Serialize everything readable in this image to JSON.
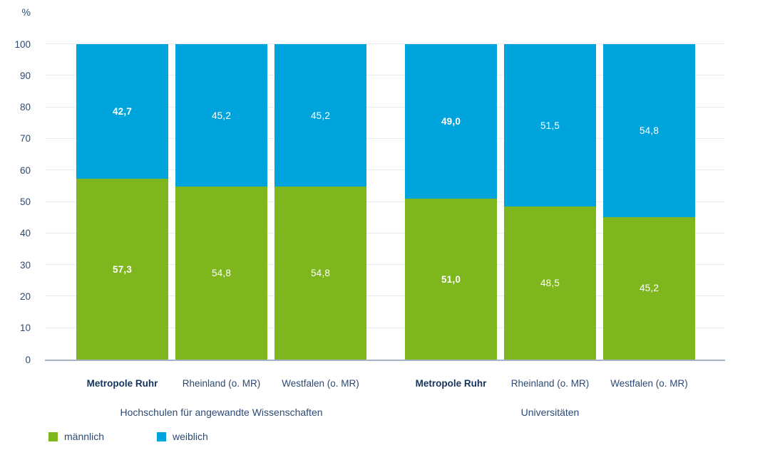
{
  "chart_data": {
    "type": "bar",
    "subtype": "stacked-percentage",
    "unit_axis_label": "%",
    "ylim": [
      0,
      100
    ],
    "y_ticks": [
      0,
      10,
      20,
      30,
      40,
      50,
      60,
      70,
      80,
      90,
      100
    ],
    "grid": "horizontal",
    "legend_position": "bottom-left",
    "series_names": [
      "männlich",
      "weiblich"
    ],
    "colors": {
      "maennlich": "#7eb61e",
      "weiblich": "#00a4dc",
      "value_label_text": "#ffffff",
      "axis_text": "#2c4a72",
      "emphasis_text": "#14335d",
      "gridline": "#e8ecf2",
      "baseline": "#a7b3c6"
    },
    "groups": [
      {
        "label": "Hochschulen für angewandte Wissenschaften",
        "bars": [
          {
            "category": "Metropole Ruhr",
            "bold": true,
            "values": {
              "maennlich": 57.3,
              "weiblich": 42.7
            },
            "display": {
              "maennlich": "57,3",
              "weiblich": "42,7"
            }
          },
          {
            "category": "Rheinland (o. MR)",
            "bold": false,
            "values": {
              "maennlich": 54.8,
              "weiblich": 45.2
            },
            "display": {
              "maennlich": "54,8",
              "weiblich": "45,2"
            }
          },
          {
            "category": "Westfalen (o. MR)",
            "bold": false,
            "values": {
              "maennlich": 54.8,
              "weiblich": 45.2
            },
            "display": {
              "maennlich": "54,8",
              "weiblich": "45,2"
            }
          }
        ]
      },
      {
        "label": "Universitäten",
        "bars": [
          {
            "category": "Metropole Ruhr",
            "bold": true,
            "values": {
              "maennlich": 51.0,
              "weiblich": 49.0
            },
            "display": {
              "maennlich": "51,0",
              "weiblich": "49,0"
            }
          },
          {
            "category": "Rheinland (o. MR)",
            "bold": false,
            "values": {
              "maennlich": 48.5,
              "weiblich": 51.5
            },
            "display": {
              "maennlich": "48,5",
              "weiblich": "51,5"
            }
          },
          {
            "category": "Westfalen (o. MR)",
            "bold": false,
            "values": {
              "maennlich": 45.2,
              "weiblich": 54.8
            },
            "display": {
              "maennlich": "45,2",
              "weiblich": "54,8"
            }
          }
        ]
      }
    ],
    "legend": [
      {
        "label": "männlich",
        "color_key": "maennlich"
      },
      {
        "label": "weiblich",
        "color_key": "weiblich"
      }
    ]
  }
}
